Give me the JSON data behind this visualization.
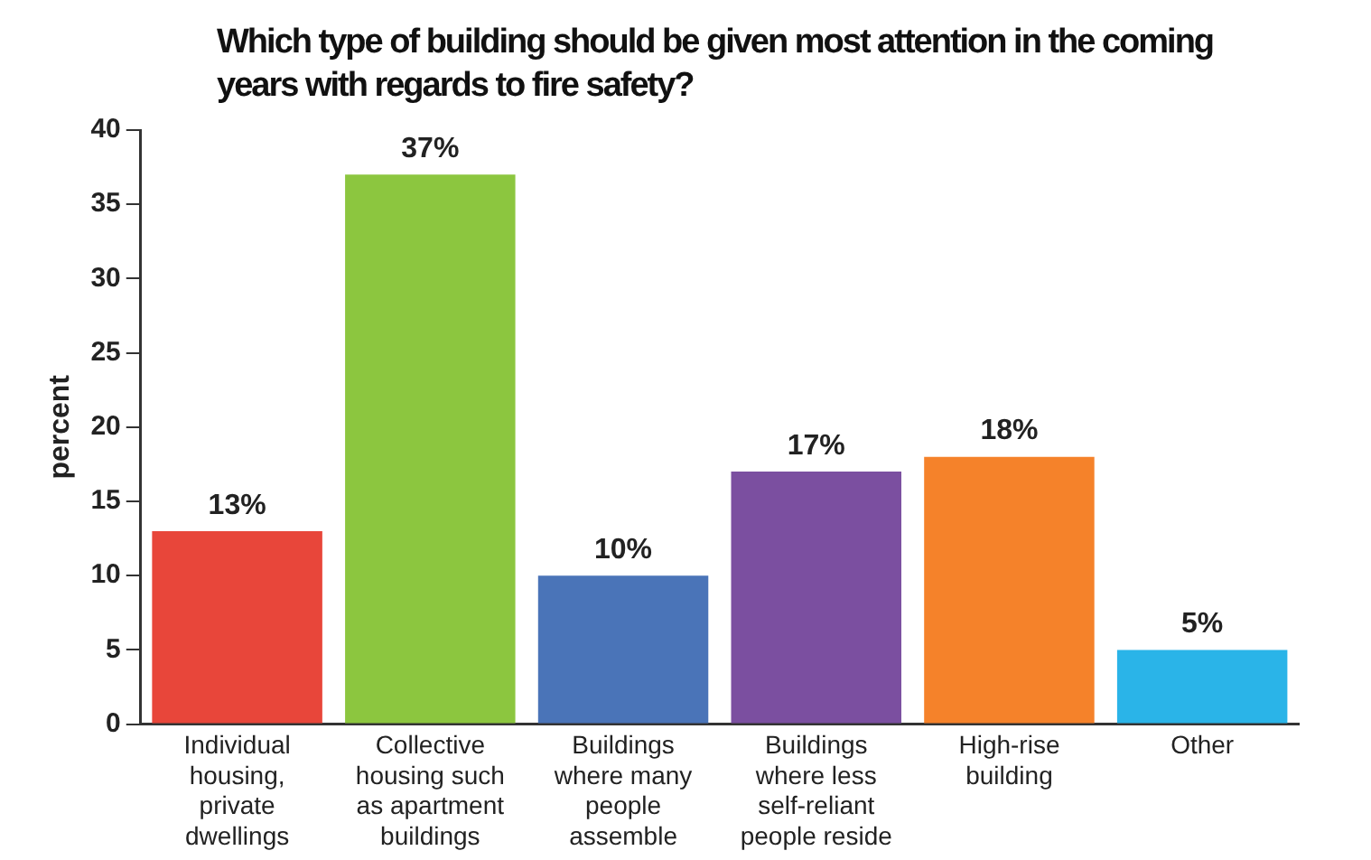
{
  "chart_data": {
    "type": "bar",
    "title": "Which type of building should be given most attention in the coming years with regards to fire safety?",
    "ylabel": "percent",
    "categories": [
      "Individual housing, private dwellings",
      "Collective housing such as apartment buildings",
      "Buildings where many people assemble",
      "Buildings where less self-reliant people reside",
      "High-rise building",
      "Other"
    ],
    "values": [
      13,
      37,
      10,
      17,
      18,
      5
    ],
    "colors": [
      "#e8463a",
      "#8cc63f",
      "#4a74b8",
      "#7b4fa0",
      "#f5822a",
      "#2ab4e8"
    ],
    "value_labels": [
      "13%",
      "37%",
      "10%",
      "17%",
      "18%",
      "5%"
    ],
    "ylim": [
      0,
      40
    ],
    "yticks": [
      0,
      5,
      10,
      15,
      20,
      25,
      30,
      35,
      40
    ],
    "grid": false,
    "legend": false
  }
}
